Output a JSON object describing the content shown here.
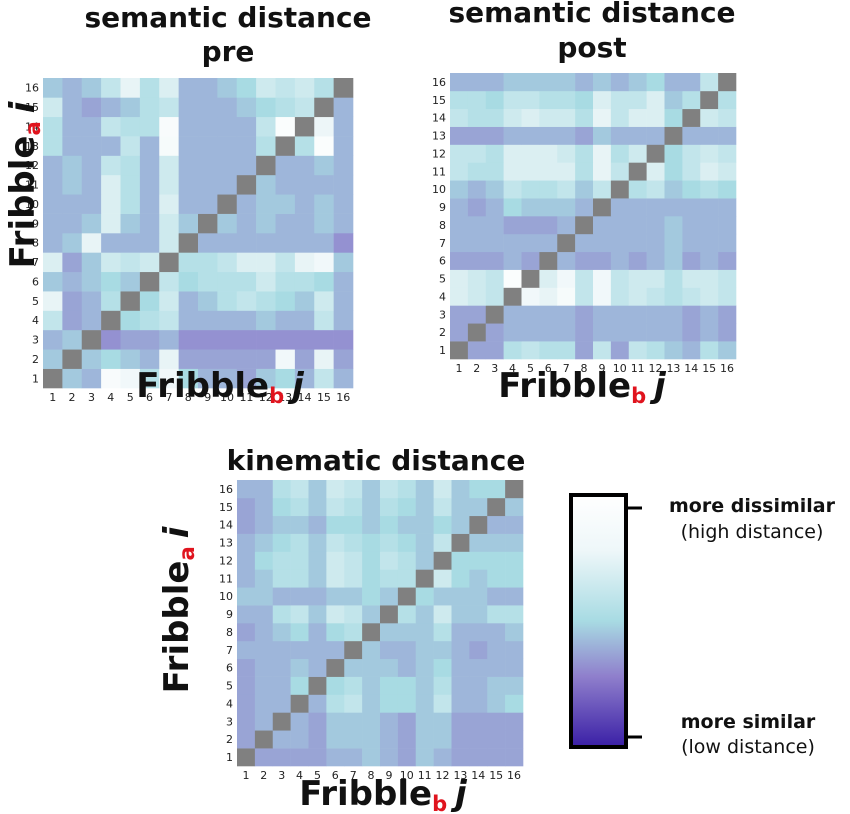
{
  "chart_data": [
    {
      "type": "heatmap",
      "title_lines": [
        "semantic distance",
        "pre"
      ],
      "x_labels": [
        "1",
        "2",
        "3",
        "4",
        "5",
        "6",
        "7",
        "8",
        "9",
        "10",
        "11",
        "12",
        "13",
        "14",
        "15",
        "16"
      ],
      "y_labels": [
        "1",
        "2",
        "3",
        "4",
        "5",
        "6",
        "7",
        "8",
        "9",
        "10",
        "11",
        "12",
        "13",
        "14",
        "15",
        "16"
      ],
      "xlabel": {
        "main": "Fribble",
        "sub": "b",
        "var": "j"
      },
      "ylabel": {
        "main": "Fribble",
        "sub": "a",
        "var": "i"
      },
      "diagonal_color": "#808080",
      "matrix": [
        [
          null,
          0.45,
          0.4,
          0.92,
          0.85,
          0.55,
          0.85,
          0.5,
          0.4,
          0.4,
          0.35,
          0.45,
          0.5,
          0.4,
          0.6,
          0.4
        ],
        [
          0.45,
          null,
          0.45,
          0.5,
          0.45,
          0.4,
          0.75,
          0.35,
          0.35,
          0.35,
          0.35,
          0.35,
          0.85,
          0.35,
          0.75,
          0.35
        ],
        [
          0.4,
          0.45,
          null,
          0.3,
          0.35,
          0.35,
          0.4,
          0.3,
          0.3,
          0.3,
          0.3,
          0.3,
          0.3,
          0.3,
          0.3,
          0.3
        ],
        [
          0.6,
          0.35,
          0.4,
          null,
          0.5,
          0.55,
          0.6,
          0.4,
          0.4,
          0.4,
          0.4,
          0.45,
          0.4,
          0.4,
          0.6,
          0.4
        ],
        [
          0.75,
          0.35,
          0.4,
          0.55,
          null,
          0.5,
          0.65,
          0.4,
          0.45,
          0.55,
          0.6,
          0.55,
          0.5,
          0.45,
          0.65,
          0.4
        ],
        [
          0.45,
          0.4,
          0.45,
          0.5,
          0.45,
          null,
          0.6,
          0.5,
          0.55,
          0.55,
          0.55,
          0.65,
          0.55,
          0.55,
          0.5,
          0.4
        ],
        [
          0.7,
          0.35,
          0.45,
          0.65,
          0.6,
          0.65,
          null,
          0.55,
          0.55,
          0.6,
          0.7,
          0.7,
          0.6,
          0.75,
          0.85,
          0.45
        ],
        [
          0.4,
          0.45,
          0.75,
          0.4,
          0.4,
          0.4,
          0.65,
          null,
          0.4,
          0.4,
          0.4,
          0.4,
          0.4,
          0.4,
          0.4,
          0.3
        ],
        [
          0.4,
          0.4,
          0.45,
          0.7,
          0.45,
          0.4,
          0.65,
          0.45,
          null,
          0.45,
          0.4,
          0.45,
          0.4,
          0.4,
          0.45,
          0.4
        ],
        [
          0.4,
          0.4,
          0.4,
          0.7,
          0.55,
          0.4,
          0.7,
          0.4,
          0.4,
          null,
          0.4,
          0.45,
          0.45,
          0.4,
          0.45,
          0.4
        ],
        [
          0.4,
          0.45,
          0.4,
          0.7,
          0.55,
          0.4,
          0.65,
          0.4,
          0.4,
          0.4,
          null,
          0.45,
          0.4,
          0.4,
          0.4,
          0.4
        ],
        [
          0.4,
          0.45,
          0.4,
          0.6,
          0.55,
          0.4,
          0.65,
          0.4,
          0.4,
          0.4,
          0.4,
          null,
          0.4,
          0.4,
          0.45,
          0.4
        ],
        [
          0.55,
          0.4,
          0.4,
          0.4,
          0.6,
          0.4,
          0.9,
          0.4,
          0.4,
          0.4,
          0.4,
          0.55,
          null,
          0.55,
          0.95,
          0.4
        ],
        [
          0.55,
          0.4,
          0.4,
          0.6,
          0.55,
          0.55,
          0.92,
          0.4,
          0.4,
          0.4,
          0.4,
          0.6,
          0.95,
          null,
          0.8,
          0.4
        ],
        [
          0.65,
          0.4,
          0.35,
          0.4,
          0.45,
          0.55,
          0.6,
          0.4,
          0.4,
          0.4,
          0.45,
          0.5,
          0.55,
          0.6,
          null,
          0.4
        ],
        [
          0.45,
          0.4,
          0.45,
          0.6,
          0.75,
          0.55,
          0.7,
          0.4,
          0.4,
          0.45,
          0.5,
          0.65,
          0.6,
          0.65,
          0.55,
          null
        ]
      ]
    },
    {
      "type": "heatmap",
      "title_lines": [
        "semantic distance",
        "post"
      ],
      "x_labels": [
        "1",
        "2",
        "3",
        "4",
        "5",
        "6",
        "7",
        "8",
        "9",
        "10",
        "11",
        "12",
        "13",
        "14",
        "15",
        "16"
      ],
      "y_labels": [
        "1",
        "2",
        "3",
        "4",
        "5",
        "6",
        "7",
        "8",
        "9",
        "10",
        "11",
        "12",
        "13",
        "14",
        "15",
        "16"
      ],
      "xlabel": {
        "main": "Fribble",
        "sub": "b",
        "var": "j"
      },
      "ylabel": {
        "main": "Fribble",
        "sub": "a",
        "var": "i"
      },
      "diagonal_color": "#808080",
      "matrix": [
        [
          null,
          0.35,
          0.35,
          0.55,
          0.6,
          0.55,
          0.55,
          0.35,
          0.6,
          0.35,
          0.6,
          0.55,
          0.45,
          0.4,
          0.55,
          0.45
        ],
        [
          0.35,
          null,
          0.35,
          0.4,
          0.4,
          0.4,
          0.4,
          0.35,
          0.4,
          0.4,
          0.4,
          0.4,
          0.4,
          0.35,
          0.4,
          0.35
        ],
        [
          0.35,
          0.35,
          null,
          0.4,
          0.4,
          0.4,
          0.4,
          0.35,
          0.4,
          0.4,
          0.4,
          0.4,
          0.4,
          0.35,
          0.4,
          0.35
        ],
        [
          0.7,
          0.65,
          0.6,
          null,
          0.85,
          0.75,
          0.9,
          0.6,
          0.85,
          0.6,
          0.65,
          0.6,
          0.55,
          0.6,
          0.65,
          0.6
        ],
        [
          0.7,
          0.65,
          0.6,
          0.95,
          null,
          0.7,
          0.85,
          0.6,
          0.85,
          0.6,
          0.65,
          0.65,
          0.55,
          0.65,
          0.65,
          0.6
        ],
        [
          0.35,
          0.35,
          0.35,
          0.4,
          0.35,
          null,
          0.4,
          0.35,
          0.35,
          0.4,
          0.35,
          0.4,
          0.45,
          0.35,
          0.4,
          0.35
        ],
        [
          0.4,
          0.4,
          0.4,
          0.4,
          0.4,
          0.4,
          null,
          0.4,
          0.4,
          0.4,
          0.4,
          0.4,
          0.45,
          0.4,
          0.4,
          0.4
        ],
        [
          0.4,
          0.4,
          0.4,
          0.35,
          0.35,
          0.35,
          0.4,
          null,
          0.4,
          0.4,
          0.4,
          0.4,
          0.45,
          0.4,
          0.4,
          0.4
        ],
        [
          0.4,
          0.35,
          0.4,
          0.5,
          0.45,
          0.45,
          0.45,
          0.4,
          null,
          0.4,
          0.4,
          0.4,
          0.4,
          0.4,
          0.4,
          0.4
        ],
        [
          0.45,
          0.4,
          0.45,
          0.6,
          0.55,
          0.55,
          0.6,
          0.45,
          0.6,
          null,
          0.55,
          0.6,
          0.45,
          0.5,
          0.55,
          0.5
        ],
        [
          0.6,
          0.55,
          0.55,
          0.7,
          0.7,
          0.7,
          0.7,
          0.55,
          0.75,
          0.6,
          null,
          0.7,
          0.5,
          0.6,
          0.7,
          0.65
        ],
        [
          0.6,
          0.6,
          0.55,
          0.7,
          0.7,
          0.7,
          0.65,
          0.55,
          0.75,
          0.55,
          0.65,
          null,
          0.5,
          0.6,
          0.65,
          0.6
        ],
        [
          0.35,
          0.35,
          0.35,
          0.4,
          0.4,
          0.4,
          0.4,
          0.35,
          0.45,
          0.4,
          0.4,
          0.4,
          null,
          0.4,
          0.4,
          0.4
        ],
        [
          0.6,
          0.55,
          0.55,
          0.65,
          0.7,
          0.65,
          0.65,
          0.55,
          0.75,
          0.6,
          0.7,
          0.7,
          0.5,
          null,
          0.65,
          0.6
        ],
        [
          0.55,
          0.55,
          0.5,
          0.6,
          0.6,
          0.55,
          0.55,
          0.5,
          0.7,
          0.6,
          0.6,
          0.7,
          0.45,
          0.55,
          null,
          0.55
        ],
        [
          0.4,
          0.4,
          0.4,
          0.45,
          0.45,
          0.45,
          0.45,
          0.4,
          0.45,
          0.4,
          0.45,
          0.5,
          0.4,
          0.4,
          0.6,
          null
        ]
      ]
    },
    {
      "type": "heatmap",
      "title_lines": [
        "kinematic distance"
      ],
      "x_labels": [
        "1",
        "2",
        "3",
        "4",
        "5",
        "6",
        "7",
        "8",
        "9",
        "10",
        "11",
        "12",
        "13",
        "14",
        "15",
        "16"
      ],
      "y_labels": [
        "1",
        "2",
        "3",
        "4",
        "5",
        "6",
        "7",
        "8",
        "9",
        "10",
        "11",
        "12",
        "13",
        "14",
        "15",
        "16"
      ],
      "xlabel": {
        "main": "Fribble",
        "sub": "b",
        "var": "j"
      },
      "ylabel": {
        "main": "Fribble",
        "sub": "a",
        "var": "i"
      },
      "diagonal_color": "#808080",
      "matrix": [
        [
          null,
          0.35,
          0.35,
          0.35,
          0.35,
          0.4,
          0.4,
          0.45,
          0.4,
          0.35,
          0.45,
          0.4,
          0.35,
          0.35,
          0.35,
          0.35
        ],
        [
          0.35,
          null,
          0.4,
          0.4,
          0.35,
          0.45,
          0.45,
          0.45,
          0.4,
          0.35,
          0.45,
          0.45,
          0.35,
          0.35,
          0.35,
          0.35
        ],
        [
          0.35,
          0.4,
          null,
          0.4,
          0.35,
          0.45,
          0.45,
          0.45,
          0.4,
          0.35,
          0.45,
          0.45,
          0.35,
          0.35,
          0.35,
          0.35
        ],
        [
          0.35,
          0.4,
          0.4,
          null,
          0.4,
          0.55,
          0.6,
          0.45,
          0.5,
          0.5,
          0.45,
          0.6,
          0.4,
          0.4,
          0.45,
          0.5
        ],
        [
          0.35,
          0.4,
          0.4,
          0.5,
          null,
          0.5,
          0.55,
          0.45,
          0.5,
          0.5,
          0.45,
          0.55,
          0.4,
          0.4,
          0.45,
          0.45
        ],
        [
          0.35,
          0.4,
          0.4,
          0.45,
          0.4,
          null,
          0.45,
          0.45,
          0.45,
          0.4,
          0.45,
          0.5,
          0.4,
          0.4,
          0.4,
          0.4
        ],
        [
          0.4,
          0.4,
          0.4,
          0.4,
          0.4,
          0.4,
          null,
          0.45,
          0.4,
          0.4,
          0.45,
          0.45,
          0.4,
          0.35,
          0.4,
          0.4
        ],
        [
          0.35,
          0.4,
          0.45,
          0.5,
          0.4,
          0.5,
          0.55,
          null,
          0.45,
          0.45,
          0.45,
          0.55,
          0.4,
          0.4,
          0.4,
          0.45
        ],
        [
          0.4,
          0.4,
          0.55,
          0.6,
          0.45,
          0.65,
          0.6,
          0.45,
          null,
          0.55,
          0.45,
          0.65,
          0.45,
          0.45,
          0.55,
          0.55
        ],
        [
          0.45,
          0.45,
          0.4,
          0.4,
          0.4,
          0.45,
          0.45,
          0.5,
          0.45,
          null,
          0.5,
          0.45,
          0.45,
          0.45,
          0.4,
          0.4
        ],
        [
          0.4,
          0.45,
          0.55,
          0.55,
          0.45,
          0.65,
          0.6,
          0.5,
          0.55,
          0.55,
          null,
          0.65,
          0.5,
          0.45,
          0.5,
          0.5
        ],
        [
          0.4,
          0.5,
          0.55,
          0.55,
          0.45,
          0.65,
          0.6,
          0.5,
          0.6,
          0.55,
          0.45,
          null,
          0.5,
          0.5,
          0.5,
          0.5
        ],
        [
          0.4,
          0.45,
          0.5,
          0.55,
          0.45,
          0.6,
          0.55,
          0.5,
          0.55,
          0.5,
          0.45,
          0.6,
          null,
          0.45,
          0.45,
          0.45
        ],
        [
          0.35,
          0.4,
          0.45,
          0.45,
          0.4,
          0.5,
          0.5,
          0.45,
          0.5,
          0.45,
          0.45,
          0.5,
          0.45,
          null,
          0.4,
          0.4
        ],
        [
          0.35,
          0.4,
          0.5,
          0.55,
          0.45,
          0.6,
          0.55,
          0.45,
          0.55,
          0.5,
          0.45,
          0.6,
          0.45,
          0.45,
          null,
          0.45
        ],
        [
          0.4,
          0.4,
          0.55,
          0.6,
          0.45,
          0.65,
          0.6,
          0.45,
          0.6,
          0.55,
          0.45,
          0.65,
          0.45,
          0.5,
          0.5,
          null
        ]
      ]
    }
  ],
  "legend": {
    "top_label": "more dissimilar",
    "top_sub": "(high distance)",
    "bottom_label": "more similar",
    "bottom_sub": "(low distance)",
    "colormap": [
      "#ffffff",
      "#e8f4f6",
      "#a8dbe3",
      "#8f7fcc",
      "#3a1fa6"
    ]
  }
}
